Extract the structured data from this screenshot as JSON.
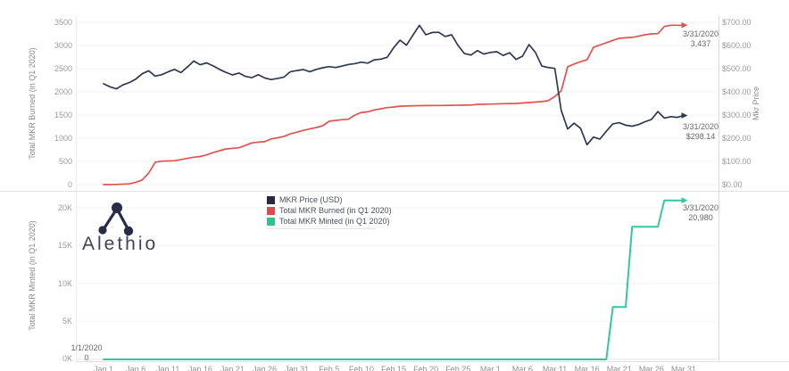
{
  "branding": {
    "name": "Alethio",
    "logo_icon": "alethio-node-graph-icon",
    "logo_color": "#272c49"
  },
  "legend": {
    "items": [
      {
        "label": "MKR Price (USD)",
        "color": "#272b3e"
      },
      {
        "label": "Total MKR Burned (in Q1 2020)",
        "color": "#e04a47"
      },
      {
        "label": "Total MKR Minted (in Q1 2020)",
        "color": "#2dc492"
      }
    ]
  },
  "chart_data": [
    {
      "type": "line",
      "panel": "top",
      "x_unit": "days_since_1/1/2020",
      "x_axis": {
        "start": "1/1/2020",
        "end": "3/31/2020",
        "labels_visible": false
      },
      "y_axis_left": {
        "title": "Total MKR Burned (in Q1 2020)",
        "range": [
          0,
          3500
        ],
        "ticks": [
          "3500",
          "3000",
          "2500",
          "2000",
          "1500",
          "1000",
          "500",
          "0"
        ]
      },
      "y_axis_right": {
        "title": "Mkr Price",
        "range": [
          0,
          700
        ],
        "ticks": [
          "$700.00",
          "$600.00",
          "$500.00",
          "$400.00",
          "$300.00",
          "$200.00",
          "$100.00",
          "$0.00"
        ]
      },
      "grid": "horizontal-faint",
      "series": [
        {
          "name": "MKR Price (USD)",
          "axis": "right",
          "color": "#2e3950",
          "width": 1.7,
          "points": [
            [
              0,
              435
            ],
            [
              1,
              422
            ],
            [
              2,
              413
            ],
            [
              3,
              430
            ],
            [
              4,
              440
            ],
            [
              5,
              455
            ],
            [
              6,
              478
            ],
            [
              7,
              491
            ],
            [
              8,
              468
            ],
            [
              9,
              474
            ],
            [
              10,
              486
            ],
            [
              11,
              497
            ],
            [
              12,
              483
            ],
            [
              13,
              507
            ],
            [
              14,
              533
            ],
            [
              15,
              517
            ],
            [
              16,
              525
            ],
            [
              17,
              512
            ],
            [
              18,
              497
            ],
            [
              19,
              484
            ],
            [
              20,
              473
            ],
            [
              21,
              481
            ],
            [
              22,
              467
            ],
            [
              23,
              461
            ],
            [
              24,
              474
            ],
            [
              25,
              460
            ],
            [
              26,
              453
            ],
            [
              27,
              458
            ],
            [
              28,
              464
            ],
            [
              29,
              487
            ],
            [
              30,
              492
            ],
            [
              31,
              496
            ],
            [
              32,
              487
            ],
            [
              33,
              497
            ],
            [
              34,
              504
            ],
            [
              35,
              509
            ],
            [
              36,
              505
            ],
            [
              37,
              511
            ],
            [
              38,
              518
            ],
            [
              39,
              522
            ],
            [
              40,
              528
            ],
            [
              41,
              524
            ],
            [
              42,
              538
            ],
            [
              43,
              541
            ],
            [
              44,
              549
            ],
            [
              45,
              590
            ],
            [
              46,
              623
            ],
            [
              47,
              601
            ],
            [
              48,
              645
            ],
            [
              49,
              687
            ],
            [
              50,
              646
            ],
            [
              51,
              656
            ],
            [
              52,
              657
            ],
            [
              53,
              639
            ],
            [
              54,
              646
            ],
            [
              55,
              600
            ],
            [
              56,
              565
            ],
            [
              57,
              559
            ],
            [
              58,
              578
            ],
            [
              59,
              563
            ],
            [
              60,
              570
            ],
            [
              61,
              573
            ],
            [
              62,
              557
            ],
            [
              63,
              569
            ],
            [
              64,
              540
            ],
            [
              65,
              554
            ],
            [
              66,
              604
            ],
            [
              67,
              570
            ],
            [
              68,
              511
            ],
            [
              69,
              505
            ],
            [
              70,
              501
            ],
            [
              71,
              320
            ],
            [
              72,
              240
            ],
            [
              73,
              265
            ],
            [
              74,
              243
            ],
            [
              75,
              172
            ],
            [
              76,
              205
            ],
            [
              77,
              196
            ],
            [
              78,
              230
            ],
            [
              79,
              262
            ],
            [
              80,
              267
            ],
            [
              81,
              256
            ],
            [
              82,
              252
            ],
            [
              83,
              259
            ],
            [
              84,
              271
            ],
            [
              85,
              281
            ],
            [
              86,
              315
            ],
            [
              87,
              287
            ],
            [
              88,
              293
            ],
            [
              89,
              290
            ],
            [
              90,
              298.14
            ]
          ]
        },
        {
          "name": "Total MKR Burned (in Q1 2020)",
          "axis": "left",
          "color": "#e0534f",
          "width": 1.7,
          "points": [
            [
              0,
              0
            ],
            [
              2,
              3
            ],
            [
              4,
              18
            ],
            [
              5,
              50
            ],
            [
              6,
              100
            ],
            [
              7,
              250
            ],
            [
              8,
              480
            ],
            [
              9,
              505
            ],
            [
              10,
              510
            ],
            [
              11,
              515
            ],
            [
              12,
              540
            ],
            [
              13,
              565
            ],
            [
              14,
              590
            ],
            [
              15,
              605
            ],
            [
              16,
              640
            ],
            [
              17,
              690
            ],
            [
              18,
              730
            ],
            [
              19,
              770
            ],
            [
              20,
              780
            ],
            [
              21,
              795
            ],
            [
              22,
              845
            ],
            [
              23,
              900
            ],
            [
              24,
              915
            ],
            [
              25,
              925
            ],
            [
              26,
              985
            ],
            [
              27,
              1010
            ],
            [
              28,
              1040
            ],
            [
              29,
              1095
            ],
            [
              30,
              1130
            ],
            [
              31,
              1170
            ],
            [
              32,
              1200
            ],
            [
              33,
              1230
            ],
            [
              34,
              1270
            ],
            [
              35,
              1365
            ],
            [
              36,
              1385
            ],
            [
              37,
              1400
            ],
            [
              38,
              1410
            ],
            [
              39,
              1500
            ],
            [
              40,
              1555
            ],
            [
              41,
              1570
            ],
            [
              42,
              1610
            ],
            [
              43,
              1635
            ],
            [
              44,
              1660
            ],
            [
              45,
              1673
            ],
            [
              46,
              1690
            ],
            [
              48,
              1700
            ],
            [
              50,
              1703
            ],
            [
              52,
              1706
            ],
            [
              54,
              1710
            ],
            [
              56,
              1713
            ],
            [
              57,
              1715
            ],
            [
              58,
              1731
            ],
            [
              60,
              1737
            ],
            [
              62,
              1744
            ],
            [
              64,
              1750
            ],
            [
              66,
              1770
            ],
            [
              68,
              1790
            ],
            [
              69,
              1810
            ],
            [
              70,
              1900
            ],
            [
              71,
              2020
            ],
            [
              72,
              2540
            ],
            [
              73,
              2600
            ],
            [
              74,
              2650
            ],
            [
              75,
              2692
            ],
            [
              76,
              2960
            ],
            [
              77,
              3010
            ],
            [
              78,
              3060
            ],
            [
              79,
              3110
            ],
            [
              80,
              3155
            ],
            [
              81,
              3165
            ],
            [
              82,
              3175
            ],
            [
              83,
              3200
            ],
            [
              84,
              3230
            ],
            [
              85,
              3250
            ],
            [
              86,
              3255
            ],
            [
              87,
              3410
            ],
            [
              88,
              3437
            ],
            [
              90,
              3437
            ]
          ]
        }
      ],
      "annotations": [
        {
          "date": "3/31/2020",
          "value": "3,437",
          "series": "Total MKR Burned (in Q1 2020)"
        },
        {
          "date": "3/31/2020",
          "value": "$298.14",
          "series": "MKR Price (USD)"
        }
      ]
    },
    {
      "type": "line",
      "panel": "bottom",
      "x_unit": "days_since_1/1/2020",
      "x_axis": {
        "start": "1/1/2020",
        "end": "3/31/2020",
        "labels_visible": true,
        "labels_clipped": true,
        "tick_labels": [
          "Jan 1",
          "Jan 6",
          "Jan 11",
          "Jan 16",
          "Jan 21",
          "Jan 26",
          "Jan 31",
          "Feb 5",
          "Feb 10",
          "Feb 15",
          "Feb 20",
          "Feb 25",
          "Mar 1",
          "Mar 6",
          "Mar 11",
          "Mar 16",
          "Mar 21",
          "Mar 26",
          "Mar 31"
        ]
      },
      "y_axis_left": {
        "title": "Total MKR Minted (in Q1 2020)",
        "range": [
          0,
          20000
        ],
        "ticks": [
          "20K",
          "15K",
          "10K",
          "5K",
          "0K"
        ]
      },
      "grid": "horizontal-faint",
      "series": [
        {
          "name": "Total MKR Minted (in Q1 2020)",
          "axis": "left",
          "color": "#33c6a1",
          "width": 2,
          "points": [
            [
              0,
              0
            ],
            [
              78,
              0
            ],
            [
              79,
              6900
            ],
            [
              81,
              6900
            ],
            [
              82,
              17500
            ],
            [
              86,
              17500
            ],
            [
              87,
              20980
            ],
            [
              90,
              20980
            ]
          ]
        }
      ],
      "annotations": [
        {
          "date": "3/31/2020",
          "value": "20,980",
          "series": "Total MKR Minted (in Q1 2020)"
        },
        {
          "date": "1/1/2020",
          "value": "0",
          "series": "Total MKR Minted (in Q1 2020)"
        }
      ]
    }
  ]
}
